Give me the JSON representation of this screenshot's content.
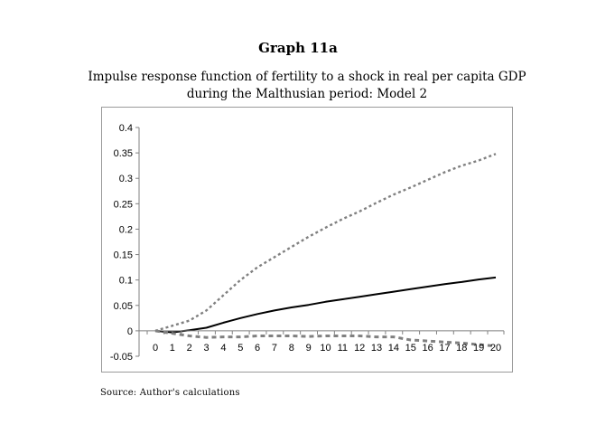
{
  "title": "Graph 11a",
  "subtitle_line1": "Impulse response function of fertility to a shock in real per capita GDP",
  "subtitle_line2": "during the Malthusian period: Model 2",
  "source": "Source: Author's calculations",
  "colors": {
    "main": "#000000",
    "bands": "#808080",
    "axis": "#808080"
  },
  "chart_data": {
    "type": "line",
    "title": "Impulse response function of fertility to a shock in real per capita GDP during the Malthusian period: Model 2",
    "xlabel": "",
    "ylabel": "",
    "x": [
      0,
      1,
      2,
      3,
      4,
      5,
      6,
      7,
      8,
      9,
      10,
      11,
      12,
      13,
      14,
      15,
      16,
      17,
      18,
      19,
      20
    ],
    "ylim": [
      -0.05,
      0.4
    ],
    "yticks": [
      -0.05,
      0,
      0.05,
      0.1,
      0.15,
      0.2,
      0.25,
      0.3,
      0.35,
      0.4
    ],
    "ytick_labels": [
      "-0.05",
      "0",
      "0.05",
      "0.1",
      "0.15",
      "0.2",
      "0.25",
      "0.3",
      "0.35",
      "0.4"
    ],
    "xtick_labels": [
      "0",
      "1",
      "2",
      "3",
      "4",
      "5",
      "6",
      "7",
      "8",
      "9",
      "10",
      "11",
      "12",
      "13",
      "14",
      "15",
      "16",
      "17",
      "18",
      "19",
      "20"
    ],
    "grid": false,
    "legend": "none",
    "series": [
      {
        "name": "Impulse response",
        "style": "solid",
        "values": [
          0,
          -0.003,
          0.001,
          0.006,
          0.016,
          0.025,
          0.033,
          0.04,
          0.046,
          0.051,
          0.057,
          0.062,
          0.067,
          0.072,
          0.077,
          0.082,
          0.087,
          0.092,
          0.096,
          0.101,
          0.105
        ]
      },
      {
        "name": "Upper band",
        "style": "dotted",
        "values": [
          0,
          0.01,
          0.02,
          0.04,
          0.07,
          0.1,
          0.125,
          0.145,
          0.165,
          0.185,
          0.203,
          0.22,
          0.235,
          0.252,
          0.268,
          0.282,
          0.297,
          0.312,
          0.325,
          0.335,
          0.348
        ]
      },
      {
        "name": "Lower band",
        "style": "dotted",
        "values": [
          0,
          -0.005,
          -0.01,
          -0.013,
          -0.012,
          -0.012,
          -0.01,
          -0.01,
          -0.01,
          -0.011,
          -0.01,
          -0.01,
          -0.01,
          -0.012,
          -0.012,
          -0.018,
          -0.02,
          -0.022,
          -0.024,
          -0.027,
          -0.03
        ]
      }
    ]
  }
}
